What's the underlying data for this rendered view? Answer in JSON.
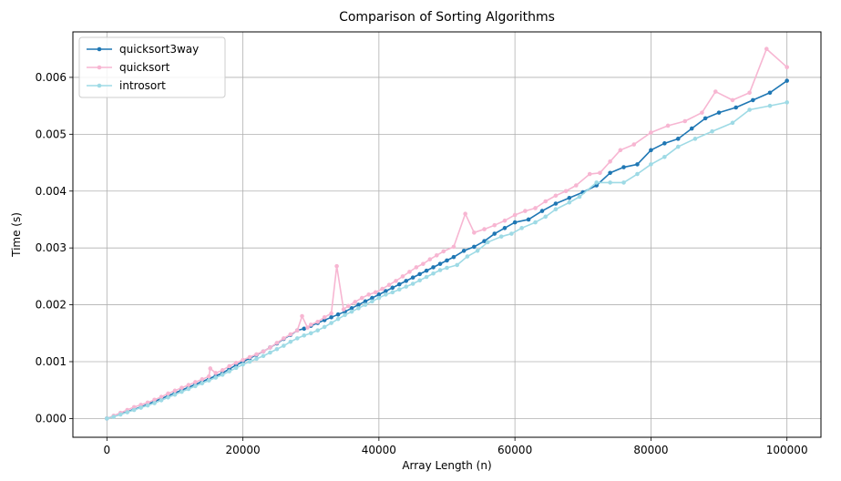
{
  "chart_data": {
    "type": "line",
    "title": "Comparison of Sorting Algorithms",
    "xlabel": "Array Length (n)",
    "ylabel": "Time (s)",
    "xlim": [
      -5000,
      105000
    ],
    "ylim": [
      -0.00033,
      0.0068
    ],
    "xticks": [
      0,
      20000,
      40000,
      60000,
      80000,
      100000
    ],
    "xtick_labels": [
      "0",
      "20000",
      "40000",
      "60000",
      "80000",
      "100000"
    ],
    "yticks": [
      0.0,
      0.001,
      0.002,
      0.003,
      0.004,
      0.005,
      0.006
    ],
    "ytick_labels": [
      "0.000",
      "0.001",
      "0.002",
      "0.003",
      "0.004",
      "0.005",
      "0.006"
    ],
    "grid": true,
    "legend_position": "top-left",
    "series": [
      {
        "name": "quicksort3way",
        "color": "#1f77b4",
        "x": [
          0,
          1000,
          2000,
          3000,
          4000,
          5000,
          6000,
          7000,
          8000,
          9000,
          10000,
          11000,
          12000,
          13000,
          14000,
          15000,
          16000,
          17000,
          18000,
          19000,
          20000,
          21000,
          22000,
          23000,
          24000,
          25000,
          26000,
          27000,
          28000,
          29000,
          30000,
          31000,
          32000,
          33000,
          34000,
          35000,
          36000,
          37000,
          38000,
          39000,
          40000,
          41000,
          42000,
          43000,
          44000,
          45000,
          46000,
          47000,
          48000,
          49000,
          50000,
          51000,
          52500,
          54000,
          55500,
          57000,
          58500,
          60000,
          62000,
          64000,
          66000,
          68000,
          70000,
          72000,
          74000,
          76000,
          78000,
          80000,
          82000,
          84000,
          86000,
          88000,
          90000,
          92500,
          95000,
          97500,
          100000
        ],
        "y": [
          0.0,
          4e-05,
          8e-05,
          0.00012,
          0.00016,
          0.0002,
          0.00025,
          0.0003,
          0.00035,
          0.0004,
          0.00045,
          0.0005,
          0.00055,
          0.0006,
          0.00065,
          0.0007,
          0.00075,
          0.0008,
          0.00087,
          0.00094,
          0.001,
          0.00106,
          0.00112,
          0.00118,
          0.00125,
          0.00132,
          0.0014,
          0.00147,
          0.00155,
          0.00158,
          0.00163,
          0.00168,
          0.00173,
          0.00178,
          0.00183,
          0.00188,
          0.00194,
          0.002,
          0.00206,
          0.00212,
          0.00218,
          0.00224,
          0.0023,
          0.00236,
          0.00242,
          0.00248,
          0.00254,
          0.0026,
          0.00266,
          0.00272,
          0.00278,
          0.00284,
          0.00295,
          0.00302,
          0.00312,
          0.00325,
          0.00335,
          0.00345,
          0.0035,
          0.00365,
          0.00378,
          0.00388,
          0.00398,
          0.0041,
          0.00432,
          0.00442,
          0.00447,
          0.00472,
          0.00484,
          0.00492,
          0.0051,
          0.00528,
          0.00538,
          0.00547,
          0.0056,
          0.00573,
          0.00594
        ]
      },
      {
        "name": "quicksort",
        "color": "#f7b6d2",
        "x": [
          0,
          1000,
          2000,
          3000,
          4000,
          5000,
          6000,
          7000,
          8000,
          9000,
          10000,
          11000,
          12000,
          13000,
          14000,
          15000,
          15200,
          16000,
          17000,
          18000,
          19000,
          20000,
          21000,
          22000,
          23000,
          24000,
          25000,
          26000,
          27000,
          28000,
          28700,
          29500,
          30000,
          31000,
          32000,
          33000,
          33800,
          34800,
          35500,
          36500,
          37500,
          38500,
          39500,
          40500,
          41500,
          42500,
          43500,
          44500,
          45500,
          46500,
          47500,
          48500,
          49500,
          51000,
          52700,
          54000,
          55500,
          57000,
          58500,
          60000,
          61500,
          63000,
          64500,
          66000,
          67500,
          69000,
          71000,
          72500,
          74000,
          75500,
          77500,
          80000,
          82500,
          85000,
          87500,
          89500,
          92000,
          94500,
          97000,
          100000
        ],
        "y": [
          0.0,
          5e-05,
          0.0001,
          0.00015,
          0.0002,
          0.00024,
          0.00028,
          0.00033,
          0.00038,
          0.00044,
          0.00049,
          0.00054,
          0.00059,
          0.00064,
          0.00069,
          0.00074,
          0.00088,
          0.0008,
          0.00085,
          0.00092,
          0.00098,
          0.00103,
          0.00108,
          0.00113,
          0.00118,
          0.00125,
          0.00133,
          0.00141,
          0.00148,
          0.00155,
          0.0018,
          0.0016,
          0.00165,
          0.0017,
          0.00178,
          0.00185,
          0.00268,
          0.00192,
          0.00198,
          0.00205,
          0.00212,
          0.00218,
          0.00222,
          0.00228,
          0.00235,
          0.00242,
          0.0025,
          0.00258,
          0.00266,
          0.00272,
          0.0028,
          0.00287,
          0.00294,
          0.00302,
          0.0036,
          0.00327,
          0.00333,
          0.0034,
          0.00348,
          0.00358,
          0.00365,
          0.0037,
          0.00382,
          0.00392,
          0.004,
          0.0041,
          0.0043,
          0.00432,
          0.00452,
          0.00472,
          0.00482,
          0.00503,
          0.00515,
          0.00523,
          0.00538,
          0.00575,
          0.0056,
          0.00573,
          0.0065,
          0.00618
        ]
      },
      {
        "name": "introsort",
        "color": "#9edae5",
        "x": [
          0,
          1000,
          2000,
          3000,
          4000,
          5000,
          6000,
          7000,
          8000,
          9000,
          10000,
          11000,
          12000,
          13000,
          14000,
          15000,
          16000,
          17000,
          18000,
          19000,
          20000,
          21000,
          22000,
          23000,
          24000,
          25000,
          26000,
          27000,
          28000,
          29000,
          30000,
          31000,
          32000,
          33000,
          34000,
          35000,
          36000,
          37000,
          38000,
          39000,
          40000,
          41000,
          42000,
          43000,
          44000,
          45000,
          46000,
          47000,
          48000,
          49000,
          50000,
          51500,
          53000,
          54500,
          56000,
          58000,
          59500,
          61000,
          63000,
          64500,
          66000,
          68000,
          69500,
          72000,
          74000,
          76000,
          78000,
          80000,
          82000,
          84000,
          86500,
          89000,
          92000,
          94500,
          97500,
          100000
        ],
        "y": [
          0.0,
          3e-05,
          7e-05,
          0.00011,
          0.00015,
          0.00019,
          0.00023,
          0.00027,
          0.00032,
          0.00037,
          0.00042,
          0.00047,
          0.00052,
          0.00057,
          0.00062,
          0.00067,
          0.00072,
          0.00077,
          0.00083,
          0.00089,
          0.00095,
          0.001,
          0.00105,
          0.0011,
          0.00116,
          0.00122,
          0.00128,
          0.00135,
          0.00141,
          0.00146,
          0.0015,
          0.00155,
          0.00161,
          0.00168,
          0.00175,
          0.00182,
          0.00188,
          0.00194,
          0.002,
          0.00206,
          0.00212,
          0.00218,
          0.00222,
          0.00227,
          0.00232,
          0.00237,
          0.00243,
          0.00249,
          0.00255,
          0.00261,
          0.00265,
          0.0027,
          0.00285,
          0.00295,
          0.0031,
          0.0032,
          0.00325,
          0.00335,
          0.00345,
          0.00355,
          0.00368,
          0.0038,
          0.0039,
          0.00415,
          0.00415,
          0.00415,
          0.0043,
          0.00447,
          0.0046,
          0.00478,
          0.00492,
          0.00505,
          0.0052,
          0.00543,
          0.0055,
          0.00556
        ]
      }
    ]
  }
}
